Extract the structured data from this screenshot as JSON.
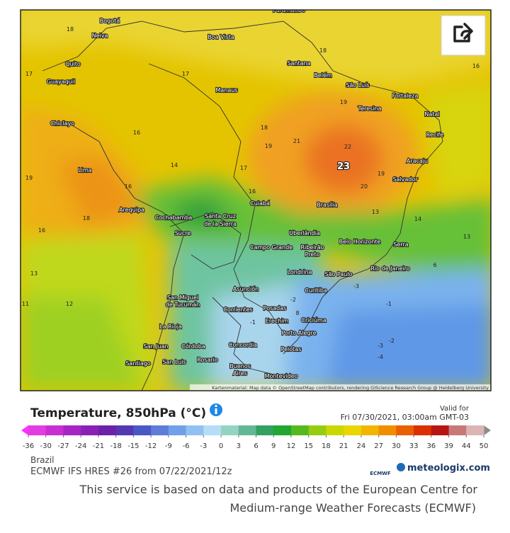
{
  "map": {
    "attribution": "Kartenmaterial: Map data © OpenStreetMap contributors, rendering GIScience Research Group @ Heidelberg University",
    "cities": [
      "Paramaribo",
      "Bogotá",
      "Neiva",
      "Boa Vista",
      "Quito",
      "Santana",
      "Belém",
      "Guayaquil",
      "São Luís",
      "Manaus",
      "Fortaleza",
      "Teresina",
      "Natal",
      "Chiclayo",
      "Recife",
      "Aracaju",
      "Lima",
      "Salvador",
      "Cuiabá",
      "Brasília",
      "Arequipa",
      "Cochabamba",
      "Santa Cruz",
      "de la Sierra",
      "Uberlândia",
      "Sucre",
      "Belo Horizonte",
      "Serra",
      "Campo Grande",
      "Ribeirão",
      "Preto",
      "Rio de Janeiro",
      "Londrina",
      "São Paulo",
      "Asunción",
      "Curitiba",
      "San Miguel",
      "de Tucumán",
      "Corrientes",
      "Posadas",
      "Criciúma",
      "Erechim",
      "La Rioja",
      "Porto Alegre",
      "San Juan",
      "Córdoba",
      "Concordia",
      "Pelotas",
      "Rosario",
      "Santiago",
      "San Luis",
      "Buenos",
      "Aires",
      "Montevideo"
    ],
    "contour_labels": [
      18,
      17,
      17,
      18,
      16,
      19,
      16,
      18,
      19,
      21,
      22,
      23,
      20,
      19,
      16,
      14,
      17,
      19,
      16,
      13,
      14,
      18,
      16,
      13,
      13,
      11,
      12,
      6,
      -3,
      -1,
      -2,
      -1,
      -3,
      -4,
      -2,
      8
    ]
  },
  "legend": {
    "title": "Temperature, 850hPa (°C)",
    "valid_label": "Valid for",
    "valid_time": "Fri 07/30/2021, 03:00am GMT-03",
    "colorbar": {
      "ticks": [
        -36,
        -30,
        -27,
        -24,
        -21,
        -18,
        -15,
        -12,
        -9,
        -6,
        -3,
        0,
        3,
        6,
        9,
        12,
        15,
        18,
        21,
        24,
        27,
        30,
        33,
        36,
        39,
        44,
        50
      ],
      "colors": [
        "#e23ce2",
        "#c82ed2",
        "#a824c4",
        "#8a20b6",
        "#6c22a8",
        "#5438b2",
        "#4a58c6",
        "#5e7cd8",
        "#72a0e8",
        "#92c0f2",
        "#b6dcf8",
        "#94d2c2",
        "#62b894",
        "#34a064",
        "#22a634",
        "#54ba1e",
        "#96cc12",
        "#cad800",
        "#ead600",
        "#f2b600",
        "#f08e00",
        "#e86000",
        "#dc3000",
        "#b81414",
        "#c87878",
        "#dcb4b4"
      ],
      "under_color": "#ff30ff",
      "over_color": "#8c8c8c"
    },
    "region": "Brazil",
    "model": "ECMWF IFS HRES #26 from 07/22/2021/12z",
    "ecmwf_logo": "ECMWF",
    "brand": "meteologix.com"
  },
  "disclaimer": [
    "This service is based on data and products of the European Centre for",
    "Medium-range Weather Forecasts (ECMWF)"
  ]
}
